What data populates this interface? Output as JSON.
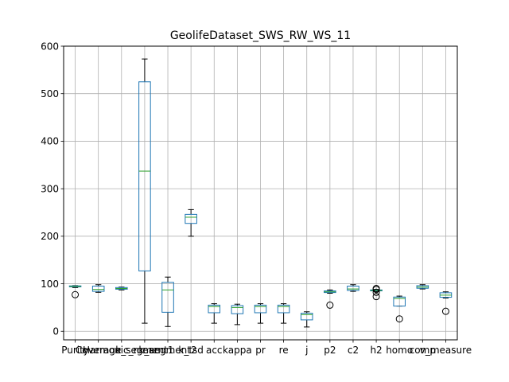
{
  "chart_data": {
    "type": "box",
    "title": "GeolifeDataset_SWS_RW_WS_11",
    "xlabel": "",
    "ylabel": "",
    "ylim": [
      -18,
      600
    ],
    "yticks": [
      0,
      100,
      200,
      300,
      400,
      500,
      600
    ],
    "grid": true,
    "categories": [
      "Purity",
      "Coverage",
      "Harmonic_mean",
      "k_segment1",
      "k_segment2",
      "k_tsd",
      "acc",
      "kappa",
      "pr",
      "re",
      "j",
      "p2",
      "c2",
      "h2",
      "homo",
      "comp",
      "v_measure"
    ],
    "boxes": [
      {
        "whislo": 92,
        "q1": 93.5,
        "med": 94.5,
        "q3": 95.5,
        "whishi": 96,
        "fliers": [
          77
        ]
      },
      {
        "whislo": 82,
        "q1": 84,
        "med": 88,
        "q3": 95,
        "whishi": 98,
        "fliers": []
      },
      {
        "whislo": 87,
        "q1": 88.5,
        "med": 90,
        "q3": 92,
        "whishi": 93,
        "fliers": []
      },
      {
        "whislo": 17,
        "q1": 127,
        "med": 337,
        "q3": 525,
        "whishi": 573,
        "fliers": []
      },
      {
        "whislo": 10,
        "q1": 40,
        "med": 87,
        "q3": 103,
        "whishi": 114,
        "fliers": []
      },
      {
        "whislo": 200,
        "q1": 227,
        "med": 240,
        "q3": 246,
        "whishi": 256,
        "fliers": []
      },
      {
        "whislo": 17,
        "q1": 39,
        "med": 52,
        "q3": 55,
        "whishi": 58,
        "fliers": []
      },
      {
        "whislo": 14,
        "q1": 37,
        "med": 50,
        "q3": 54,
        "whishi": 57,
        "fliers": []
      },
      {
        "whislo": 17,
        "q1": 39,
        "med": 52,
        "q3": 55,
        "whishi": 58,
        "fliers": []
      },
      {
        "whislo": 17,
        "q1": 39,
        "med": 52,
        "q3": 55,
        "whishi": 58,
        "fliers": []
      },
      {
        "whislo": 9,
        "q1": 24,
        "med": 35,
        "q3": 38,
        "whishi": 41,
        "fliers": []
      },
      {
        "whislo": 80,
        "q1": 81.5,
        "med": 83,
        "q3": 85,
        "whishi": 87,
        "fliers": [
          55
        ]
      },
      {
        "whislo": 84,
        "q1": 86,
        "med": 89,
        "q3": 95,
        "whishi": 98,
        "fliers": []
      },
      {
        "whislo": 84,
        "q1": 85,
        "med": 86,
        "q3": 87,
        "whishi": 88,
        "fliers": [
          73,
          82,
          88,
          90
        ]
      },
      {
        "whislo": 53,
        "q1": 53,
        "med": 69,
        "q3": 72,
        "whishi": 74,
        "fliers": [
          26
        ]
      },
      {
        "whislo": 89,
        "q1": 90.5,
        "med": 93,
        "q3": 96,
        "whishi": 98,
        "fliers": []
      },
      {
        "whislo": 70,
        "q1": 71.5,
        "med": 76,
        "q3": 81,
        "whishi": 83,
        "fliers": [
          42
        ]
      }
    ],
    "colors": {
      "box": "#1f77b4",
      "median": "#2ca02c",
      "whisker": "#000000",
      "grid": "#b0b0b0"
    }
  }
}
